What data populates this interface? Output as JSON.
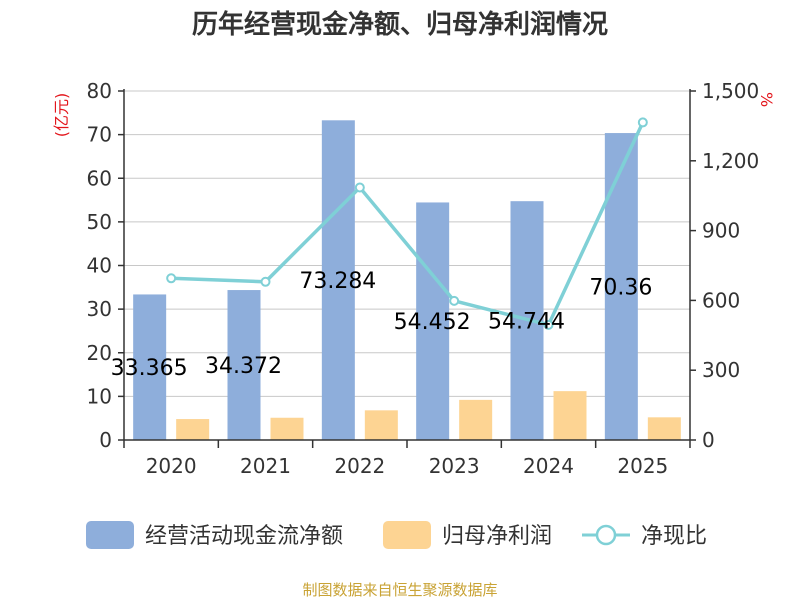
{
  "chart_data": {
    "type": "bar",
    "title": "历年经营现金净额、归母净利润情况",
    "categories": [
      "2020",
      "2021",
      "2022",
      "2023",
      "2024",
      "2025"
    ],
    "left_axis": {
      "unit": "(亿元)",
      "ylim": [
        0,
        80
      ],
      "ticks": [
        "0",
        "10",
        "20",
        "30",
        "40",
        "50",
        "60",
        "70",
        "80"
      ],
      "tick_values": [
        0,
        10,
        20,
        30,
        40,
        50,
        60,
        70,
        80
      ]
    },
    "right_axis": {
      "unit": "%",
      "ylim": [
        0,
        1500
      ],
      "ticks": [
        "0",
        "300",
        "600",
        "900",
        "1,200",
        "1,500"
      ],
      "tick_values": [
        0,
        300,
        600,
        900,
        1200,
        1500
      ]
    },
    "series": [
      {
        "name": "经营活动现金流净额",
        "type": "bar",
        "axis": "left",
        "color": "#8eaedb",
        "values": [
          33.365,
          34.372,
          73.284,
          54.452,
          54.744,
          70.36
        ],
        "labels": [
          "33.365",
          "34.372",
          "73.284",
          "54.452",
          "54.744",
          "70.36"
        ]
      },
      {
        "name": "归母净利润",
        "type": "bar",
        "axis": "left",
        "color": "#fdd493",
        "values": [
          4.8,
          5.1,
          6.8,
          9.2,
          11.2,
          5.2
        ]
      },
      {
        "name": "净现比",
        "type": "line",
        "axis": "right",
        "color": "#7fd0d6",
        "values": [
          695,
          680,
          1085,
          598,
          495,
          1365
        ]
      }
    ],
    "grid": true,
    "legend_position": "bottom"
  },
  "source": "制图数据来自恒生聚源数据库"
}
